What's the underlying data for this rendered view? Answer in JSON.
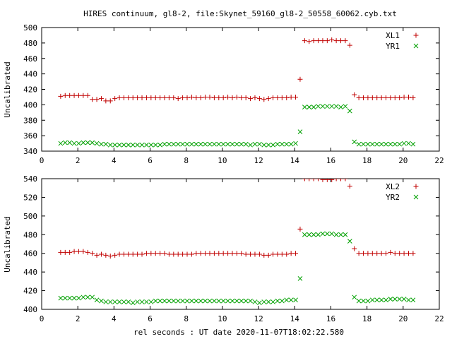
{
  "title": "HIRES continuum, gl8-2, file:Skynet_59160_gl8-2_50558_60062.cyb.txt",
  "xlabel": "rel seconds : UT date 2020-11-07T18:02:22.580",
  "colors": {
    "red": "#c00000",
    "green": "#00a000"
  },
  "chart_data": [
    {
      "type": "scatter",
      "ylabel": "Uncalibrated",
      "xlim": [
        0,
        22
      ],
      "ylim": [
        340,
        500
      ],
      "xticks": [
        0,
        2,
        4,
        6,
        8,
        10,
        12,
        14,
        16,
        18,
        20,
        22
      ],
      "yticks": [
        340,
        360,
        380,
        400,
        420,
        440,
        460,
        480,
        500
      ],
      "legend": "top-right",
      "series": [
        {
          "name": "XL1",
          "marker": "plus",
          "color": "#c00000",
          "x": [
            1.05,
            1.3,
            1.55,
            1.8,
            2.05,
            2.3,
            2.55,
            2.8,
            3.05,
            3.3,
            3.55,
            3.8,
            4.05,
            4.3,
            4.55,
            4.8,
            5.05,
            5.3,
            5.55,
            5.8,
            6.05,
            6.3,
            6.55,
            6.8,
            7.05,
            7.3,
            7.55,
            7.8,
            8.05,
            8.3,
            8.55,
            8.8,
            9.05,
            9.3,
            9.55,
            9.8,
            10.05,
            10.3,
            10.55,
            10.8,
            11.05,
            11.3,
            11.55,
            11.8,
            12.05,
            12.3,
            12.55,
            12.8,
            13.05,
            13.3,
            13.55,
            13.8,
            14.05,
            14.3,
            14.55,
            14.8,
            15.05,
            15.3,
            15.55,
            15.8,
            16.05,
            16.3,
            16.55,
            16.8,
            17.05,
            17.3,
            17.55,
            17.8,
            18.05,
            18.3,
            18.55,
            18.8,
            19.05,
            19.3,
            19.55,
            19.8,
            20.05,
            20.3,
            20.55
          ],
          "y": [
            411,
            412,
            412,
            412,
            412,
            412,
            412,
            407,
            407,
            408,
            405,
            405,
            408,
            409,
            409,
            409,
            409,
            409,
            409,
            409,
            409,
            409,
            409,
            409,
            409,
            409,
            408,
            409,
            409,
            410,
            409,
            409,
            410,
            410,
            409,
            409,
            409,
            410,
            409,
            410,
            409,
            409,
            408,
            409,
            408,
            407,
            408,
            409,
            409,
            409,
            409,
            410,
            410,
            433,
            483,
            482,
            483,
            483,
            483,
            483,
            484,
            483,
            483,
            483,
            477,
            413,
            409,
            409,
            409,
            409,
            409,
            409,
            409,
            409,
            409,
            409,
            410,
            410,
            409
          ]
        },
        {
          "name": "YR1",
          "marker": "cross",
          "color": "#00a000",
          "x": [
            1.05,
            1.3,
            1.55,
            1.8,
            2.05,
            2.3,
            2.55,
            2.8,
            3.05,
            3.3,
            3.55,
            3.8,
            4.05,
            4.3,
            4.55,
            4.8,
            5.05,
            5.3,
            5.55,
            5.8,
            6.05,
            6.3,
            6.55,
            6.8,
            7.05,
            7.3,
            7.55,
            7.8,
            8.05,
            8.3,
            8.55,
            8.8,
            9.05,
            9.3,
            9.55,
            9.8,
            10.05,
            10.3,
            10.55,
            10.8,
            11.05,
            11.3,
            11.55,
            11.8,
            12.05,
            12.3,
            12.55,
            12.8,
            13.05,
            13.3,
            13.55,
            13.8,
            14.05,
            14.3,
            14.55,
            14.8,
            15.05,
            15.3,
            15.55,
            15.8,
            16.05,
            16.3,
            16.55,
            16.8,
            17.05,
            17.3,
            17.55,
            17.8,
            18.05,
            18.3,
            18.55,
            18.8,
            19.05,
            19.3,
            19.55,
            19.8,
            20.05,
            20.3,
            20.55
          ],
          "y": [
            350,
            351,
            351,
            350,
            350,
            351,
            351,
            351,
            350,
            349,
            349,
            348,
            348,
            348,
            348,
            348,
            348,
            348,
            348,
            348,
            348,
            348,
            348,
            349,
            349,
            349,
            349,
            349,
            349,
            349,
            349,
            349,
            349,
            349,
            349,
            349,
            349,
            349,
            349,
            349,
            349,
            349,
            348,
            349,
            349,
            348,
            348,
            348,
            349,
            349,
            349,
            349,
            350,
            365,
            397,
            397,
            397,
            398,
            398,
            398,
            398,
            398,
            397,
            398,
            392,
            352,
            349,
            349,
            349,
            349,
            349,
            349,
            349,
            349,
            349,
            349,
            350,
            350,
            349
          ]
        }
      ]
    },
    {
      "type": "scatter",
      "ylabel": "Uncalibrated",
      "xlim": [
        0,
        22
      ],
      "ylim": [
        400,
        540
      ],
      "xticks": [
        0,
        2,
        4,
        6,
        8,
        10,
        12,
        14,
        16,
        18,
        20,
        22
      ],
      "yticks": [
        400,
        420,
        440,
        460,
        480,
        500,
        520,
        540
      ],
      "legend": "top-right",
      "series": [
        {
          "name": "XL2",
          "marker": "plus",
          "color": "#c00000",
          "x": [
            1.05,
            1.3,
            1.55,
            1.8,
            2.05,
            2.3,
            2.55,
            2.8,
            3.05,
            3.3,
            3.55,
            3.8,
            4.05,
            4.3,
            4.55,
            4.8,
            5.05,
            5.3,
            5.55,
            5.8,
            6.05,
            6.3,
            6.55,
            6.8,
            7.05,
            7.3,
            7.55,
            7.8,
            8.05,
            8.3,
            8.55,
            8.8,
            9.05,
            9.3,
            9.55,
            9.8,
            10.05,
            10.3,
            10.55,
            10.8,
            11.05,
            11.3,
            11.55,
            11.8,
            12.05,
            12.3,
            12.55,
            12.8,
            13.05,
            13.3,
            13.55,
            13.8,
            14.05,
            14.3,
            14.55,
            14.8,
            15.05,
            15.3,
            15.55,
            15.8,
            16.05,
            16.3,
            16.55,
            16.8,
            17.05,
            17.3,
            17.55,
            17.8,
            18.05,
            18.3,
            18.55,
            18.8,
            19.05,
            19.3,
            19.55,
            19.8,
            20.05,
            20.3,
            20.55
          ],
          "y": [
            461,
            461,
            461,
            462,
            462,
            462,
            461,
            460,
            458,
            459,
            458,
            457,
            458,
            459,
            459,
            459,
            459,
            459,
            459,
            460,
            460,
            460,
            460,
            460,
            459,
            459,
            459,
            459,
            459,
            459,
            460,
            460,
            460,
            460,
            460,
            460,
            460,
            460,
            460,
            460,
            460,
            459,
            459,
            459,
            459,
            458,
            458,
            459,
            459,
            459,
            459,
            460,
            460,
            486,
            540,
            540,
            540,
            540,
            539,
            539,
            539,
            540,
            540,
            540,
            532,
            465,
            460,
            460,
            460,
            460,
            460,
            460,
            460,
            461,
            460,
            460,
            460,
            460,
            460
          ]
        },
        {
          "name": "YR2",
          "marker": "cross",
          "color": "#00a000",
          "x": [
            1.05,
            1.3,
            1.55,
            1.8,
            2.05,
            2.3,
            2.55,
            2.8,
            3.05,
            3.3,
            3.55,
            3.8,
            4.05,
            4.3,
            4.55,
            4.8,
            5.05,
            5.3,
            5.55,
            5.8,
            6.05,
            6.3,
            6.55,
            6.8,
            7.05,
            7.3,
            7.55,
            7.8,
            8.05,
            8.3,
            8.55,
            8.8,
            9.05,
            9.3,
            9.55,
            9.8,
            10.05,
            10.3,
            10.55,
            10.8,
            11.05,
            11.3,
            11.55,
            11.8,
            12.05,
            12.3,
            12.55,
            12.8,
            13.05,
            13.3,
            13.55,
            13.8,
            14.05,
            14.3,
            14.55,
            14.8,
            15.05,
            15.3,
            15.55,
            15.8,
            16.05,
            16.3,
            16.55,
            16.8,
            17.05,
            17.3,
            17.55,
            17.8,
            18.05,
            18.3,
            18.55,
            18.8,
            19.05,
            19.3,
            19.55,
            19.8,
            20.05,
            20.3,
            20.55
          ],
          "y": [
            412,
            412,
            412,
            412,
            412,
            413,
            413,
            413,
            410,
            409,
            408,
            408,
            408,
            408,
            408,
            408,
            407,
            408,
            408,
            408,
            408,
            409,
            409,
            409,
            409,
            409,
            409,
            409,
            409,
            409,
            409,
            409,
            409,
            409,
            409,
            409,
            409,
            409,
            409,
            409,
            409,
            409,
            409,
            408,
            407,
            408,
            408,
            408,
            409,
            409,
            410,
            410,
            410,
            433,
            480,
            480,
            480,
            480,
            481,
            481,
            481,
            480,
            480,
            480,
            473,
            413,
            409,
            409,
            409,
            410,
            410,
            410,
            410,
            411,
            411,
            411,
            411,
            410,
            410
          ]
        }
      ]
    }
  ]
}
